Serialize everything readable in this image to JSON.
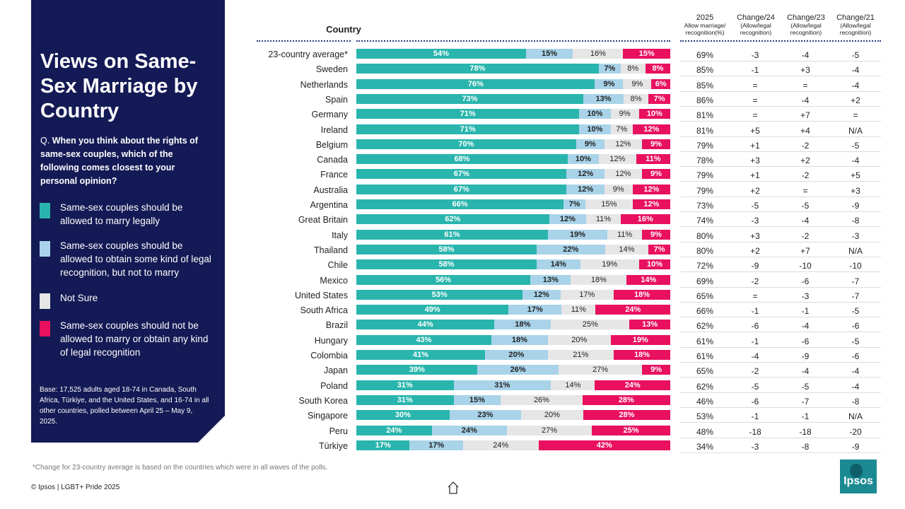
{
  "sidebar": {
    "title": "Views on Same-Sex Marriage by Country",
    "question_prefix": "Q.",
    "question": "When you think about the rights of same-sex couples, which of the following comes closest to your personal opinion?",
    "base": "Base: 17,525 adults aged 18-74 in Canada, South Africa, Türkiye, and the United States, and 16-74 in all other countries, polled between April 25 – May 9, 2025."
  },
  "columns": {
    "country": "Country",
    "c2025": [
      "2025",
      "Allow marriage/",
      "recognition(%)"
    ],
    "ch24": [
      "Change/24",
      "(Allow/legal",
      "recognition)"
    ],
    "ch23": [
      "Change/23",
      "(Allow/legal",
      "recognition)"
    ],
    "ch21": [
      "Change/21",
      "(Allow/legal",
      "recognition)"
    ]
  },
  "colors": {
    "teal": "#29b5ad",
    "lightblue": "#a9d3e9",
    "grey": "#e6e6e6",
    "pink": "#e8105f",
    "navy": "#141a55"
  },
  "chart_data": {
    "type": "bar",
    "stacked": true,
    "orientation": "horizontal",
    "series": [
      {
        "name": "Same-sex couples should be allowed to marry legally",
        "color": "#29b5ad"
      },
      {
        "name": "Same-sex couples should be allowed to obtain some kind of legal recognition, but not to marry",
        "color": "#a9d3e9"
      },
      {
        "name": "Not Sure",
        "color": "#e6e6e6"
      },
      {
        "name": "Same-sex couples should not be allowed to marry or obtain any kind of legal recognition",
        "color": "#e8105f"
      }
    ],
    "rows": [
      {
        "country": "23-country average*",
        "values": [
          54,
          15,
          16,
          15
        ],
        "y2025": "69%",
        "c24": "-3",
        "c23": "-4",
        "c21": "-5"
      },
      {
        "country": "Sweden",
        "values": [
          78,
          7,
          8,
          8
        ],
        "y2025": "85%",
        "c24": "-1",
        "c23": "+3",
        "c21": "-4"
      },
      {
        "country": "Netherlands",
        "values": [
          76,
          9,
          9,
          6
        ],
        "y2025": "85%",
        "c24": "=",
        "c23": "=",
        "c21": "-4"
      },
      {
        "country": "Spain",
        "values": [
          73,
          13,
          8,
          7
        ],
        "y2025": "86%",
        "c24": "=",
        "c23": "-4",
        "c21": "+2"
      },
      {
        "country": "Germany",
        "values": [
          71,
          10,
          9,
          10
        ],
        "y2025": "81%",
        "c24": "=",
        "c23": "+7",
        "c21": "="
      },
      {
        "country": "Ireland",
        "values": [
          71,
          10,
          7,
          12
        ],
        "y2025": "81%",
        "c24": "+5",
        "c23": "+4",
        "c21": "N/A"
      },
      {
        "country": "Belgium",
        "values": [
          70,
          9,
          12,
          9
        ],
        "y2025": "79%",
        "c24": "+1",
        "c23": "-2",
        "c21": "-5"
      },
      {
        "country": "Canada",
        "values": [
          68,
          10,
          12,
          11
        ],
        "y2025": "78%",
        "c24": "+3",
        "c23": "+2",
        "c21": "-4"
      },
      {
        "country": "France",
        "values": [
          67,
          12,
          12,
          9
        ],
        "y2025": "79%",
        "c24": "+1",
        "c23": "-2",
        "c21": "+5"
      },
      {
        "country": "Australia",
        "values": [
          67,
          12,
          9,
          12
        ],
        "y2025": "79%",
        "c24": "+2",
        "c23": "=",
        "c21": "+3"
      },
      {
        "country": "Argentina",
        "values": [
          66,
          7,
          15,
          12
        ],
        "y2025": "73%",
        "c24": "-5",
        "c23": "-5",
        "c21": "-9"
      },
      {
        "country": "Great Britain",
        "values": [
          62,
          12,
          11,
          16
        ],
        "y2025": "74%",
        "c24": "-3",
        "c23": "-4",
        "c21": "-8"
      },
      {
        "country": "Italy",
        "values": [
          61,
          19,
          11,
          9
        ],
        "y2025": "80%",
        "c24": "+3",
        "c23": "-2",
        "c21": "-3"
      },
      {
        "country": "Thailand",
        "values": [
          58,
          22,
          14,
          7
        ],
        "y2025": "80%",
        "c24": "+2",
        "c23": "+7",
        "c21": "N/A"
      },
      {
        "country": "Chile",
        "values": [
          58,
          14,
          19,
          10
        ],
        "y2025": "72%",
        "c24": "-9",
        "c23": "-10",
        "c21": "-10"
      },
      {
        "country": "Mexico",
        "values": [
          56,
          13,
          18,
          14
        ],
        "y2025": "69%",
        "c24": "-2",
        "c23": "-6",
        "c21": "-7"
      },
      {
        "country": "United States",
        "values": [
          53,
          12,
          17,
          18
        ],
        "y2025": "65%",
        "c24": "=",
        "c23": "-3",
        "c21": "-7"
      },
      {
        "country": "South Africa",
        "values": [
          49,
          17,
          11,
          24
        ],
        "y2025": "66%",
        "c24": "-1",
        "c23": "-1",
        "c21": "-5"
      },
      {
        "country": "Brazil",
        "values": [
          44,
          18,
          25,
          13
        ],
        "y2025": "62%",
        "c24": "-6",
        "c23": "-4",
        "c21": "-6"
      },
      {
        "country": "Hungary",
        "values": [
          43,
          18,
          20,
          19
        ],
        "y2025": "61%",
        "c24": "-1",
        "c23": "-6",
        "c21": "-5"
      },
      {
        "country": "Colombia",
        "values": [
          41,
          20,
          21,
          18
        ],
        "y2025": "61%",
        "c24": "-4",
        "c23": "-9",
        "c21": "-6"
      },
      {
        "country": "Japan",
        "values": [
          39,
          26,
          27,
          9
        ],
        "y2025": "65%",
        "c24": "-2",
        "c23": "-4",
        "c21": "-4"
      },
      {
        "country": "Poland",
        "values": [
          31,
          31,
          14,
          24
        ],
        "y2025": "62%",
        "c24": "-5",
        "c23": "-5",
        "c21": "-4"
      },
      {
        "country": "South Korea",
        "values": [
          31,
          15,
          26,
          28
        ],
        "y2025": "46%",
        "c24": "-6",
        "c23": "-7",
        "c21": "-8"
      },
      {
        "country": "Singapore",
        "values": [
          30,
          23,
          20,
          28
        ],
        "y2025": "53%",
        "c24": "-1",
        "c23": "-1",
        "c21": "N/A"
      },
      {
        "country": "Peru",
        "values": [
          24,
          24,
          27,
          25
        ],
        "y2025": "48%",
        "c24": "-18",
        "c23": "-18",
        "c21": "-20"
      },
      {
        "country": "Türkiye",
        "values": [
          17,
          17,
          24,
          42
        ],
        "y2025": "34%",
        "c24": "-3",
        "c23": "-8",
        "c21": "-9"
      }
    ]
  },
  "footer": {
    "footnote": "*Change for 23-country average is based on the countries which were in all waves of the polls.",
    "copyright": "© Ipsos | LGBT+ Pride 2025",
    "logo_text": "Ipsos",
    "home_icon": "home-icon"
  }
}
